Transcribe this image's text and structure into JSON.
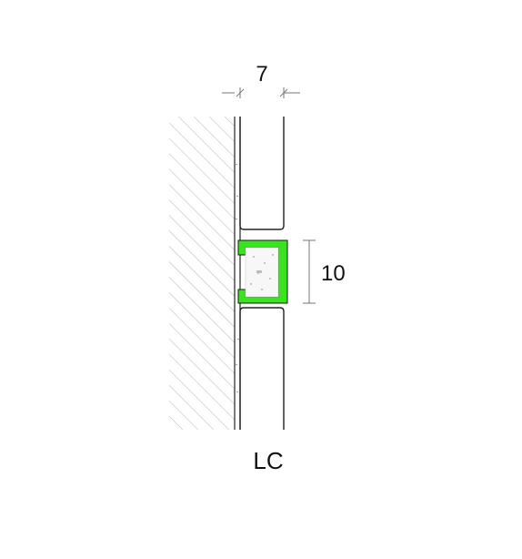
{
  "diagram": {
    "width_dimension": "7",
    "height_dimension": "10",
    "profile_label": "LC",
    "colors": {
      "profile": "#39e41f",
      "line": "#222222",
      "hatch": "#9a9a9a",
      "dimension": "#777777"
    }
  }
}
